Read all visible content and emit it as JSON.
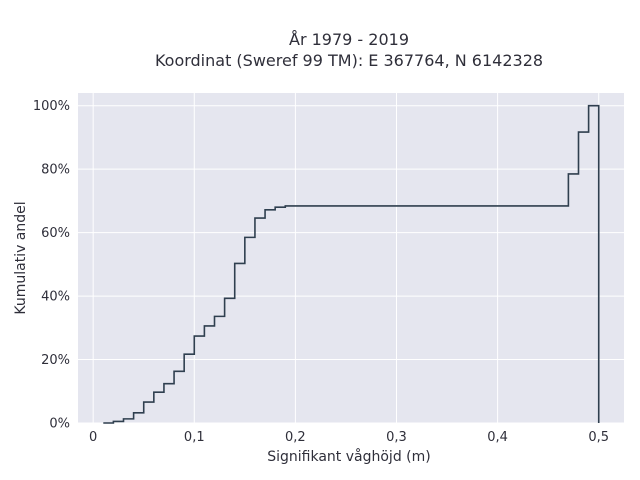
{
  "chart_data": {
    "type": "line",
    "title_line1": "År 1979 - 2019",
    "title_line2": "Koordinat (Sweref 99 TM): E 367764, N 6142328",
    "xlabel": "Signifikant våghöjd (m)",
    "ylabel": "Kumulativ andel",
    "xlim": [
      -0.015,
      0.525
    ],
    "ylim": [
      0,
      1.04
    ],
    "x_ticks": [
      0,
      0.1,
      0.2,
      0.3,
      0.4,
      0.5
    ],
    "x_tick_labels": [
      "0",
      "0,1",
      "0,2",
      "0,3",
      "0,4",
      "0,5"
    ],
    "y_ticks": [
      0,
      0.2,
      0.4,
      0.6,
      0.8,
      1.0
    ],
    "y_tick_labels": [
      "0%",
      "20%",
      "40%",
      "60%",
      "80%",
      "100%"
    ],
    "grid": true,
    "line_color": "#2f3f4f",
    "step_x": [
      0.01,
      0.02,
      0.03,
      0.04,
      0.05,
      0.06,
      0.07,
      0.08,
      0.09,
      0.1,
      0.11,
      0.12,
      0.13,
      0.14,
      0.15,
      0.16,
      0.17,
      0.18,
      0.19,
      0.47,
      0.48,
      0.49,
      0.5
    ],
    "step_y": [
      0.0,
      0.005,
      0.013,
      0.032,
      0.066,
      0.097,
      0.124,
      0.163,
      0.217,
      0.274,
      0.306,
      0.336,
      0.393,
      0.503,
      0.585,
      0.646,
      0.672,
      0.68,
      0.684,
      0.785,
      0.917,
      1.0,
      0.0
    ]
  }
}
